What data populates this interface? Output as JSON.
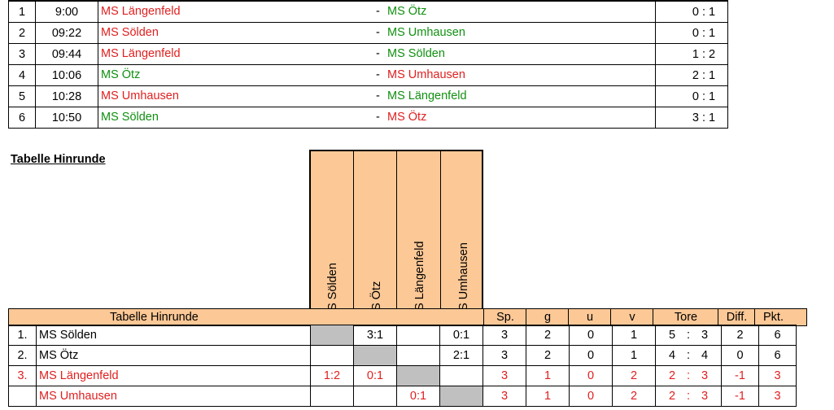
{
  "matches": [
    {
      "nr": "1",
      "time": "9:00",
      "home": "MS Längenfeld",
      "home_color": "red",
      "away": "MS Ötz",
      "away_color": "green",
      "score": "0 :  1"
    },
    {
      "nr": "2",
      "time": "09:22",
      "home": "MS Sölden",
      "home_color": "red",
      "away": "MS Umhausen",
      "away_color": "green",
      "score": "0 :  1"
    },
    {
      "nr": "3",
      "time": "09:44",
      "home": "MS Längenfeld",
      "home_color": "red",
      "away": "MS Sölden",
      "away_color": "green",
      "score": "1 :  2"
    },
    {
      "nr": "4",
      "time": "10:06",
      "home": "MS Ötz",
      "home_color": "green",
      "away": "MS Umhausen",
      "away_color": "red",
      "score": "2 :  1"
    },
    {
      "nr": "5",
      "time": "10:28",
      "home": "MS Umhausen",
      "home_color": "red",
      "away": "MS Längenfeld",
      "away_color": "green",
      "score": "0 :  1"
    },
    {
      "nr": "6",
      "time": "10:50",
      "home": "MS Sölden",
      "home_color": "green",
      "away": "MS Ötz",
      "away_color": "red",
      "score": "3 :  1"
    }
  ],
  "section_title": "Tabelle Hinrunde",
  "standings": {
    "header_label": "Tabelle Hinrunde",
    "team_columns": [
      "MS Sölden",
      "MS Ötz",
      "MS Längenfeld",
      "MS Umhausen"
    ],
    "stat_headers": {
      "sp": "Sp.",
      "g": "g",
      "u": "u",
      "v": "v",
      "tore": "Tore",
      "diff": "Diff.",
      "pkt": "Pkt."
    },
    "rows": [
      {
        "rank": "1.",
        "team": "MS Sölden",
        "color": "black",
        "cells": [
          "",
          "3:1",
          "",
          "0:1"
        ],
        "sp": "3",
        "g": "2",
        "u": "0",
        "v": "1",
        "tf": "5",
        "ta": "3",
        "diff": "2",
        "pkt": "6"
      },
      {
        "rank": "2.",
        "team": "MS Ötz",
        "color": "black",
        "cells": [
          "",
          "",
          "",
          "2:1"
        ],
        "sp": "3",
        "g": "2",
        "u": "0",
        "v": "1",
        "tf": "4",
        "ta": "4",
        "diff": "0",
        "pkt": "6"
      },
      {
        "rank": "3.",
        "team": "MS Längenfeld",
        "color": "red",
        "cells": [
          "1:2",
          "0:1",
          "",
          ""
        ],
        "sp": "3",
        "g": "1",
        "u": "0",
        "v": "2",
        "tf": "2",
        "ta": "3",
        "diff": "-1",
        "pkt": "3"
      },
      {
        "rank": "",
        "team": "MS Umhausen",
        "color": "red",
        "cells": [
          "",
          "",
          "0:1",
          ""
        ],
        "sp": "3",
        "g": "1",
        "u": "0",
        "v": "2",
        "tf": "2",
        "ta": "3",
        "diff": "-1",
        "pkt": "3"
      }
    ]
  },
  "colors": {
    "header_fill": "#fcc896",
    "grey_cell": "#c0c0c0",
    "red": "#e02020",
    "green": "#109010"
  }
}
